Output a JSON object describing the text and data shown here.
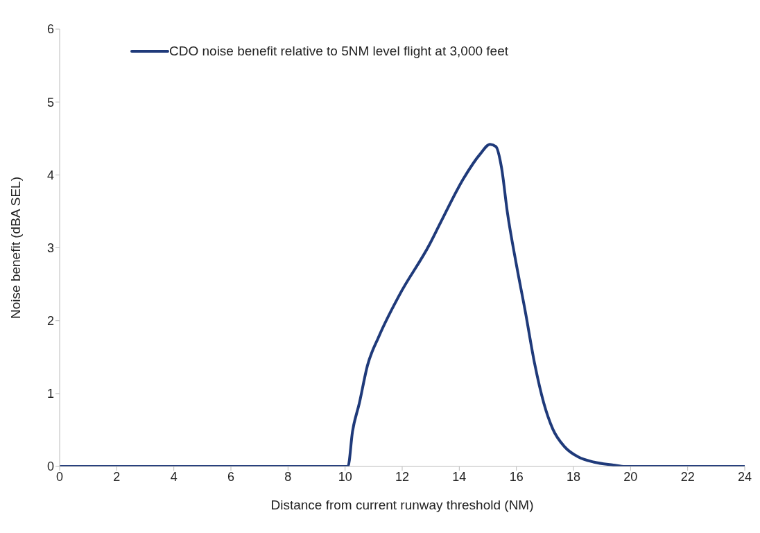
{
  "chart_data": {
    "type": "line",
    "xlabel": "Distance from current runway threshold (NM)",
    "ylabel": "Noise benefit (dBA SEL)",
    "xlim": [
      0,
      24
    ],
    "xticks": [
      0,
      2,
      4,
      6,
      8,
      10,
      12,
      14,
      16,
      18,
      20,
      22,
      24
    ],
    "ylim": [
      0,
      6
    ],
    "yticks": [
      0,
      1,
      2,
      3,
      4,
      5,
      6
    ],
    "grid": false,
    "legend": "top",
    "marker": "none",
    "line_style": "solid",
    "series": [
      {
        "name": "CDO noise benefit relative to 5NM level flight at 3,000 feet",
        "color": "#1f3a7a",
        "x": [
          0,
          10.1,
          10.26,
          10.5,
          10.78,
          11.18,
          11.9,
          12.95,
          13.35,
          14.15,
          14.72,
          15.08,
          15.28,
          15.48,
          15.68,
          16.0,
          16.32,
          16.64,
          16.96,
          17.28,
          17.69,
          18.17,
          18.72,
          19.4,
          19.8,
          24
        ],
        "values": [
          0,
          0,
          0.48,
          0.87,
          1.38,
          1.78,
          2.35,
          3.04,
          3.35,
          3.95,
          4.28,
          4.42,
          4.39,
          4.1,
          3.5,
          2.77,
          2.11,
          1.41,
          0.87,
          0.51,
          0.27,
          0.13,
          0.06,
          0.02,
          0,
          0
        ]
      }
    ]
  }
}
